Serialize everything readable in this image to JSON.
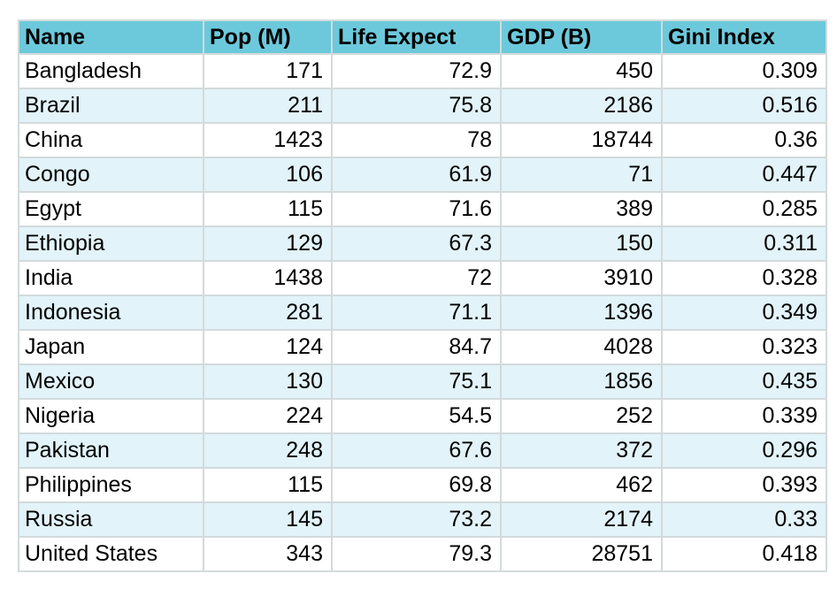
{
  "colors": {
    "header_bg": "#6CC9DB",
    "row_alt_bg": "#E2F3F9",
    "row_bg": "#FFFFFF",
    "border": "#D3DADC",
    "text": "#000000"
  },
  "chart_data": {
    "type": "table",
    "columns": [
      "Name",
      "Pop (M)",
      "Life Expect",
      "GDP (B)",
      "Gini Index"
    ],
    "rows": [
      [
        "Bangladesh",
        171,
        72.9,
        450,
        0.309
      ],
      [
        "Brazil",
        211,
        75.8,
        2186,
        0.516
      ],
      [
        "China",
        1423,
        78,
        18744,
        0.36
      ],
      [
        "Congo",
        106,
        61.9,
        71,
        0.447
      ],
      [
        "Egypt",
        115,
        71.6,
        389,
        0.285
      ],
      [
        "Ethiopia",
        129,
        67.3,
        150,
        0.311
      ],
      [
        "India",
        1438,
        72,
        3910,
        0.328
      ],
      [
        "Indonesia",
        281,
        71.1,
        1396,
        0.349
      ],
      [
        "Japan",
        124,
        84.7,
        4028,
        0.323
      ],
      [
        "Mexico",
        130,
        75.1,
        1856,
        0.435
      ],
      [
        "Nigeria",
        224,
        54.5,
        252,
        0.339
      ],
      [
        "Pakistan",
        248,
        67.6,
        372,
        0.296
      ],
      [
        "Philippines",
        115,
        69.8,
        462,
        0.393
      ],
      [
        "Russia",
        145,
        73.2,
        2174,
        0.33
      ],
      [
        "United States",
        343,
        79.3,
        28751,
        0.418
      ]
    ],
    "layout": {
      "striped": true,
      "first_column_align": "left",
      "numeric_align": "right",
      "header_align": "left"
    }
  }
}
